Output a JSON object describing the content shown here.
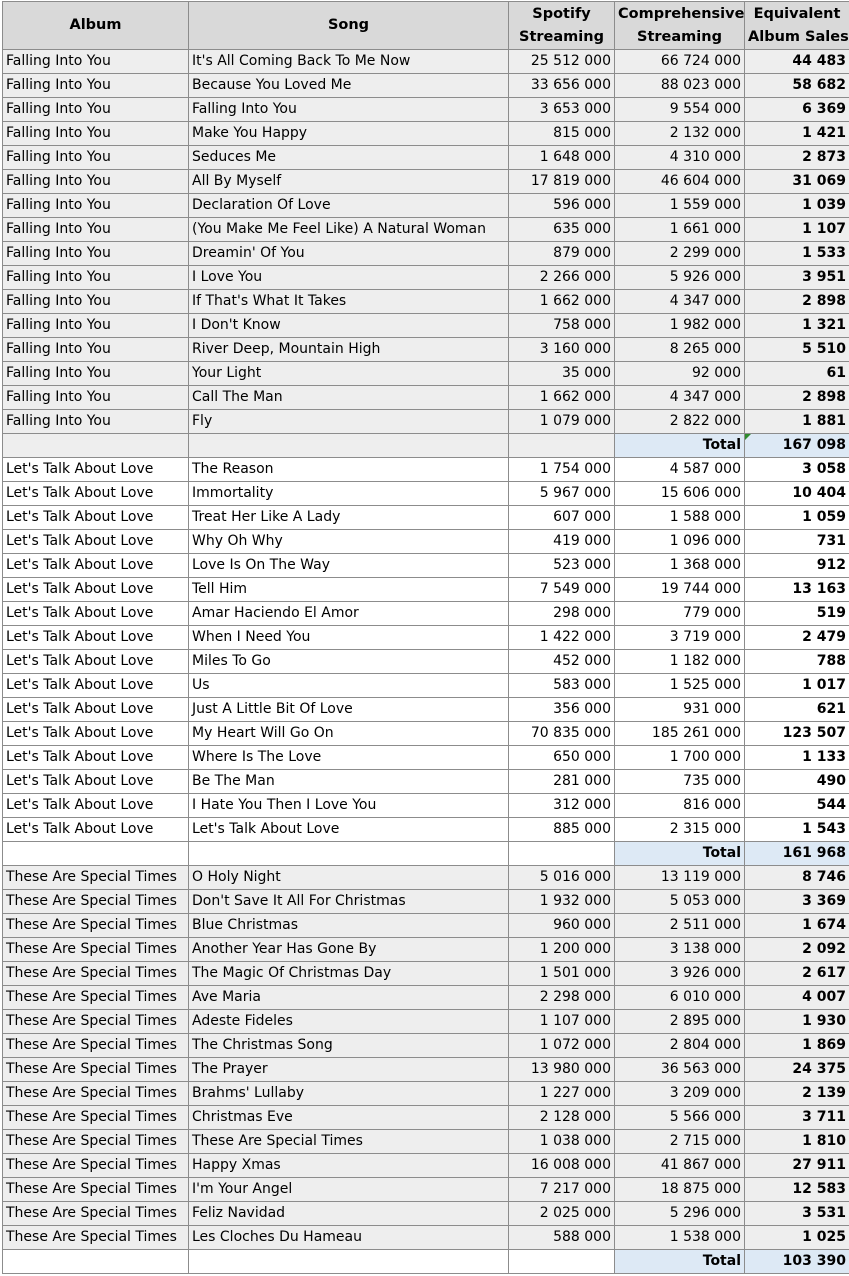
{
  "header": {
    "album": "Album",
    "song": "Song",
    "spotify_line1": "Spotify",
    "spotify_line2": "Streaming",
    "comp_line1": "Comprehensive",
    "comp_line2": "Streaming",
    "eq_line1": "Equivalent",
    "eq_line2": "Album Sales"
  },
  "total_label": "Total",
  "sections": [
    {
      "rows": [
        {
          "album": "Falling Into You",
          "song": "It's All Coming Back To Me Now",
          "spotify": "25 512 000",
          "comprehensive": "66 724 000",
          "equivalent": "44 483"
        },
        {
          "album": "Falling Into You",
          "song": "Because You Loved Me",
          "spotify": "33 656 000",
          "comprehensive": "88 023 000",
          "equivalent": "58 682"
        },
        {
          "album": "Falling Into You",
          "song": "Falling Into You",
          "spotify": "3 653 000",
          "comprehensive": "9 554 000",
          "equivalent": "6 369"
        },
        {
          "album": "Falling Into You",
          "song": "Make You Happy",
          "spotify": "815 000",
          "comprehensive": "2 132 000",
          "equivalent": "1 421"
        },
        {
          "album": "Falling Into You",
          "song": "Seduces Me",
          "spotify": "1 648 000",
          "comprehensive": "4 310 000",
          "equivalent": "2 873"
        },
        {
          "album": "Falling Into You",
          "song": "All By Myself",
          "spotify": "17 819 000",
          "comprehensive": "46 604 000",
          "equivalent": "31 069"
        },
        {
          "album": "Falling Into You",
          "song": "Declaration Of Love",
          "spotify": "596 000",
          "comprehensive": "1 559 000",
          "equivalent": "1 039"
        },
        {
          "album": "Falling Into You",
          "song": "(You Make Me Feel Like) A Natural Woman",
          "spotify": "635 000",
          "comprehensive": "1 661 000",
          "equivalent": "1 107"
        },
        {
          "album": "Falling Into You",
          "song": "Dreamin' Of You",
          "spotify": "879 000",
          "comprehensive": "2 299 000",
          "equivalent": "1 533"
        },
        {
          "album": "Falling Into You",
          "song": "I Love You",
          "spotify": "2 266 000",
          "comprehensive": "5 926 000",
          "equivalent": "3 951"
        },
        {
          "album": "Falling Into You",
          "song": "If That's What It Takes",
          "spotify": "1 662 000",
          "comprehensive": "4 347 000",
          "equivalent": "2 898"
        },
        {
          "album": "Falling Into You",
          "song": "I Don't Know",
          "spotify": "758 000",
          "comprehensive": "1 982 000",
          "equivalent": "1 321"
        },
        {
          "album": "Falling Into You",
          "song": "River Deep, Mountain High",
          "spotify": "3 160 000",
          "comprehensive": "8 265 000",
          "equivalent": "5 510"
        },
        {
          "album": "Falling Into You",
          "song": "Your Light",
          "spotify": "35 000",
          "comprehensive": "92 000",
          "equivalent": "61"
        },
        {
          "album": "Falling Into You",
          "song": "Call The Man",
          "spotify": "1 662 000",
          "comprehensive": "4 347 000",
          "equivalent": "2 898"
        },
        {
          "album": "Falling Into You",
          "song": "Fly",
          "spotify": "1 079 000",
          "comprehensive": "2 822 000",
          "equivalent": "1 881"
        }
      ],
      "total": "167 098",
      "marked": true
    },
    {
      "rows": [
        {
          "album": "Let's Talk About Love",
          "song": "The Reason",
          "spotify": "1 754 000",
          "comprehensive": "4 587 000",
          "equivalent": "3 058"
        },
        {
          "album": "Let's Talk About Love",
          "song": "Immortality",
          "spotify": "5 967 000",
          "comprehensive": "15 606 000",
          "equivalent": "10 404"
        },
        {
          "album": "Let's Talk About Love",
          "song": "Treat Her Like A Lady",
          "spotify": "607 000",
          "comprehensive": "1 588 000",
          "equivalent": "1 059"
        },
        {
          "album": "Let's Talk About Love",
          "song": "Why Oh Why",
          "spotify": "419 000",
          "comprehensive": "1 096 000",
          "equivalent": "731"
        },
        {
          "album": "Let's Talk About Love",
          "song": "Love Is On The Way",
          "spotify": "523 000",
          "comprehensive": "1 368 000",
          "equivalent": "912"
        },
        {
          "album": "Let's Talk About Love",
          "song": "Tell Him",
          "spotify": "7 549 000",
          "comprehensive": "19 744 000",
          "equivalent": "13 163"
        },
        {
          "album": "Let's Talk About Love",
          "song": "Amar Haciendo El Amor",
          "spotify": "298 000",
          "comprehensive": "779 000",
          "equivalent": "519"
        },
        {
          "album": "Let's Talk About Love",
          "song": "When I Need You",
          "spotify": "1 422 000",
          "comprehensive": "3 719 000",
          "equivalent": "2 479"
        },
        {
          "album": "Let's Talk About Love",
          "song": "Miles To Go",
          "spotify": "452 000",
          "comprehensive": "1 182 000",
          "equivalent": "788"
        },
        {
          "album": "Let's Talk About Love",
          "song": "Us",
          "spotify": "583 000",
          "comprehensive": "1 525 000",
          "equivalent": "1 017"
        },
        {
          "album": "Let's Talk About Love",
          "song": "Just A Little Bit Of Love",
          "spotify": "356 000",
          "comprehensive": "931 000",
          "equivalent": "621"
        },
        {
          "album": "Let's Talk About Love",
          "song": "My Heart Will Go On",
          "spotify": "70 835 000",
          "comprehensive": "185 261 000",
          "equivalent": "123 507"
        },
        {
          "album": "Let's Talk About Love",
          "song": "Where Is The Love",
          "spotify": "650 000",
          "comprehensive": "1 700 000",
          "equivalent": "1 133"
        },
        {
          "album": "Let's Talk About Love",
          "song": "Be The Man",
          "spotify": "281 000",
          "comprehensive": "735 000",
          "equivalent": "490"
        },
        {
          "album": "Let's Talk About Love",
          "song": "I Hate You Then I Love You",
          "spotify": "312 000",
          "comprehensive": "816 000",
          "equivalent": "544"
        },
        {
          "album": "Let's Talk About Love",
          "song": "Let's Talk About Love",
          "spotify": "885 000",
          "comprehensive": "2 315 000",
          "equivalent": "1 543"
        }
      ],
      "total": "161 968",
      "marked": false
    },
    {
      "rows": [
        {
          "album": "These Are Special Times",
          "song": "O Holy Night",
          "spotify": "5 016 000",
          "comprehensive": "13 119 000",
          "equivalent": "8 746"
        },
        {
          "album": "These Are Special Times",
          "song": "Don't Save It All For Christmas",
          "spotify": "1 932 000",
          "comprehensive": "5 053 000",
          "equivalent": "3 369"
        },
        {
          "album": "These Are Special Times",
          "song": "Blue Christmas",
          "spotify": "960 000",
          "comprehensive": "2 511 000",
          "equivalent": "1 674"
        },
        {
          "album": "These Are Special Times",
          "song": "Another Year Has Gone By",
          "spotify": "1 200 000",
          "comprehensive": "3 138 000",
          "equivalent": "2 092"
        },
        {
          "album": "These Are Special Times",
          "song": "The Magic Of Christmas Day",
          "spotify": "1 501 000",
          "comprehensive": "3 926 000",
          "equivalent": "2 617"
        },
        {
          "album": "These Are Special Times",
          "song": "Ave Maria",
          "spotify": "2 298 000",
          "comprehensive": "6 010 000",
          "equivalent": "4 007"
        },
        {
          "album": "These Are Special Times",
          "song": "Adeste Fideles",
          "spotify": "1 107 000",
          "comprehensive": "2 895 000",
          "equivalent": "1 930"
        },
        {
          "album": "These Are Special Times",
          "song": "The Christmas Song",
          "spotify": "1 072 000",
          "comprehensive": "2 804 000",
          "equivalent": "1 869"
        },
        {
          "album": "These Are Special Times",
          "song": "The Prayer",
          "spotify": "13 980 000",
          "comprehensive": "36 563 000",
          "equivalent": "24 375"
        },
        {
          "album": "These Are Special Times",
          "song": "Brahms' Lullaby",
          "spotify": "1 227 000",
          "comprehensive": "3 209 000",
          "equivalent": "2 139"
        },
        {
          "album": "These Are Special Times",
          "song": "Christmas Eve",
          "spotify": "2 128 000",
          "comprehensive": "5 566 000",
          "equivalent": "3 711"
        },
        {
          "album": "These Are Special Times",
          "song": "These Are Special Times",
          "spotify": "1 038 000",
          "comprehensive": "2 715 000",
          "equivalent": "1 810"
        },
        {
          "album": "These Are Special Times",
          "song": "Happy Xmas",
          "spotify": "16 008 000",
          "comprehensive": "41 867 000",
          "equivalent": "27 911"
        },
        {
          "album": "These Are Special Times",
          "song": "I'm Your Angel",
          "spotify": "7 217 000",
          "comprehensive": "18 875 000",
          "equivalent": "12 583"
        },
        {
          "album": "These Are Special Times",
          "song": "Feliz Navidad",
          "spotify": "2 025 000",
          "comprehensive": "5 296 000",
          "equivalent": "3 531"
        },
        {
          "album": "These Are Special Times",
          "song": "Les Cloches Du Hameau",
          "spotify": "588 000",
          "comprehensive": "1 538 000",
          "equivalent": "1 025"
        }
      ],
      "total": "103 390",
      "marked": false
    }
  ]
}
